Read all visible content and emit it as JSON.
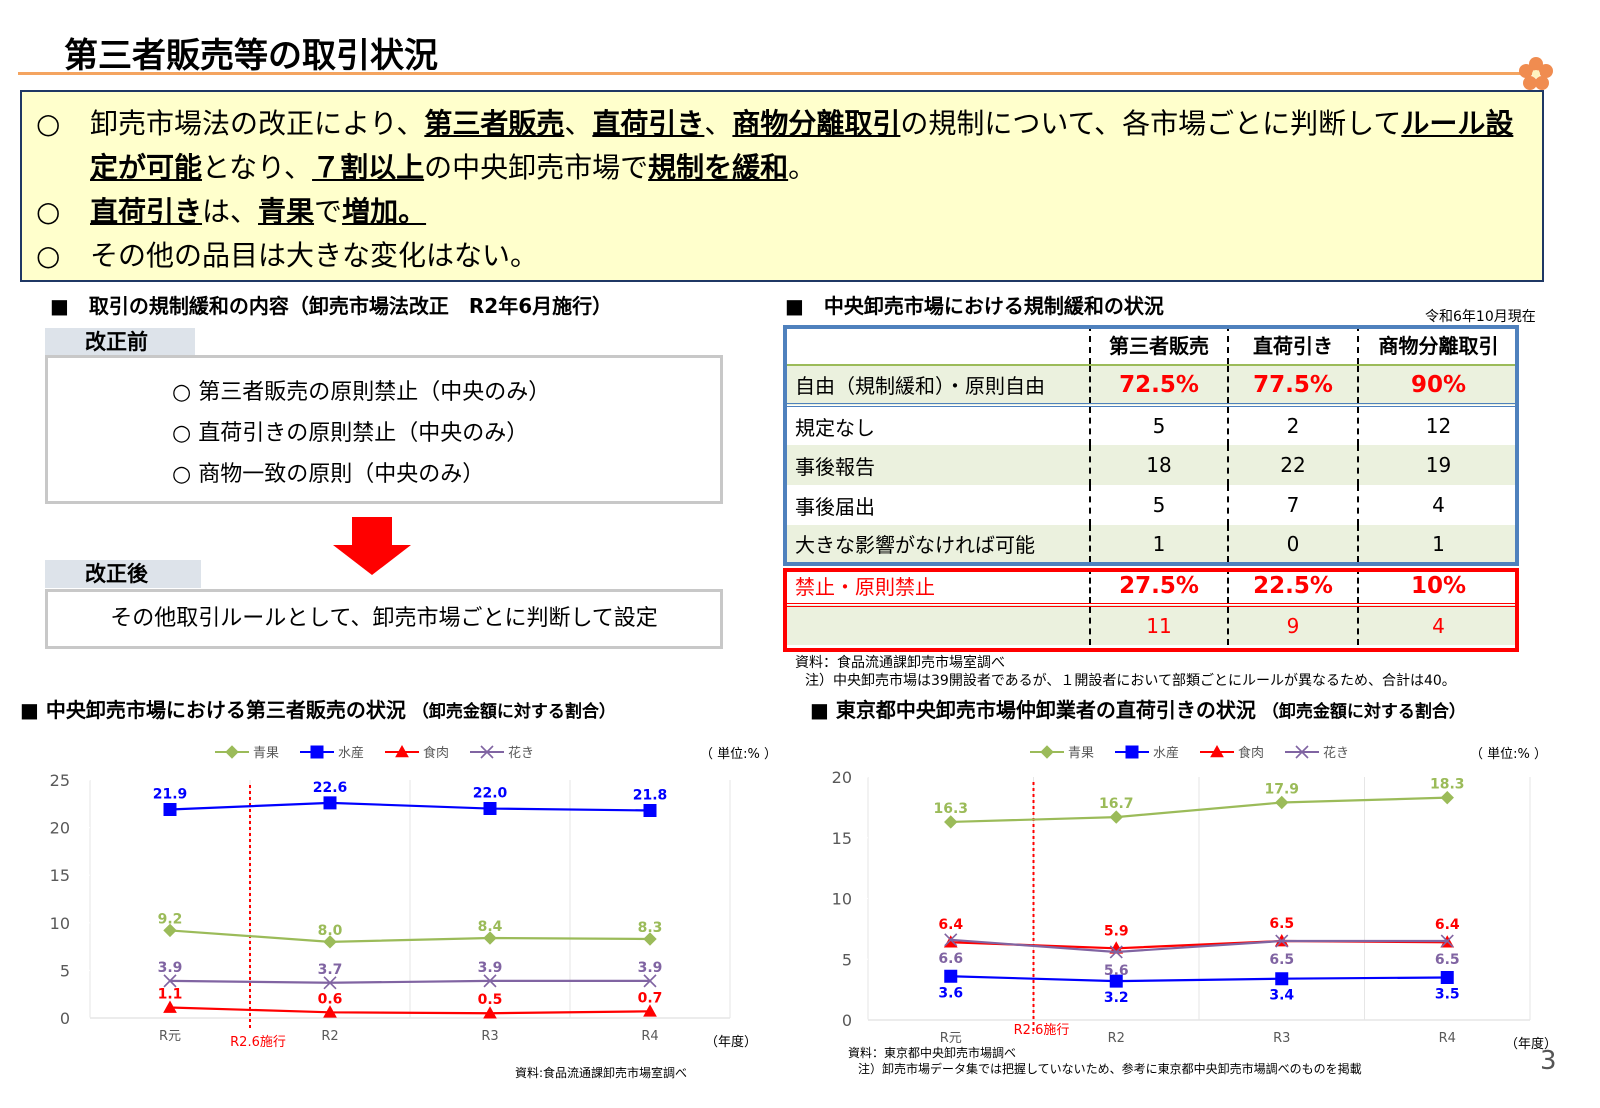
{
  "header": {
    "title": "第三者販売等の取引状況",
    "page_number": "3"
  },
  "summary": [
    {
      "marker": "○",
      "parts": [
        {
          "text": "卸売市場法の改正により、",
          "bold": false
        },
        {
          "text": "第三者販売",
          "bold": true
        },
        {
          "text": "、",
          "bold": false
        },
        {
          "text": "直荷引き",
          "bold": true
        },
        {
          "text": "、",
          "bold": false
        },
        {
          "text": "商物分離取引",
          "bold": true
        },
        {
          "text": "の規制について、各市場ごとに判断して",
          "bold": false
        },
        {
          "text": "ルール設定が可能",
          "bold": true
        },
        {
          "text": "となり、",
          "bold": false
        },
        {
          "text": "７割以上",
          "bold": true
        },
        {
          "text": "の中央卸売市場で",
          "bold": false
        },
        {
          "text": "規制を緩和",
          "bold": true
        },
        {
          "text": "。",
          "bold": false
        }
      ]
    },
    {
      "marker": "○",
      "parts": [
        {
          "text": "直荷引き",
          "bold": true
        },
        {
          "text": "は、",
          "bold": false
        },
        {
          "text": "青果",
          "bold": true
        },
        {
          "text": "で",
          "bold": false
        },
        {
          "text": "増加。",
          "bold": true
        }
      ]
    },
    {
      "marker": "○",
      "parts": [
        {
          "text": "その他の品目は大きな変化はない。",
          "bold": false
        }
      ]
    }
  ],
  "reform": {
    "heading": "■　取引の規制緩和の内容（卸売市場法改正　R2年6月施行）",
    "before_label": "改正前",
    "before_items": [
      "○ 第三者販売の原則禁止（中央のみ）",
      "○ 直荷引きの原則禁止（中央のみ）",
      "○ 商物一致の原則（中央のみ）"
    ],
    "after_label": "改正後",
    "after_text": "その他取引ルールとして、卸売市場ごとに判断して設定"
  },
  "table": {
    "heading": "■　中央卸売市場における規制緩和の状況",
    "date": "令和6年10月現在",
    "columns": [
      "第三者販売",
      "直荷引き",
      "商物分離取引"
    ],
    "free": {
      "label": "自由（規制緩和）・原則自由",
      "values": [
        "72.5%",
        "77.5%",
        "90%"
      ]
    },
    "free_rows": [
      {
        "label": "規定なし",
        "values": [
          5,
          2,
          12
        ]
      },
      {
        "label": "事後報告",
        "values": [
          18,
          22,
          19
        ]
      },
      {
        "label": "事後届出",
        "values": [
          5,
          7,
          4
        ]
      },
      {
        "label": "大きな影響がなければ可能",
        "values": [
          1,
          0,
          1
        ]
      }
    ],
    "banned": {
      "label": "禁止・原則禁止",
      "values": [
        "27.5%",
        "22.5%",
        "10%"
      ]
    },
    "banned_counts": [
      11,
      9,
      4
    ],
    "source": "資料：食品流通課卸売市場室調べ",
    "note": "注）中央卸売市場は39開設者であるが、１開設者において部類ごとにルールが異なるため、合計は40。"
  },
  "chart_data": [
    {
      "type": "line",
      "title": "■ 中央卸売市場における第三者販売の状況",
      "subtitle": "（卸売金額に対する割合）",
      "unit_label": "（ 単位:% ）",
      "x_label": "（年度）",
      "annotation": "R2.6施行",
      "categories": [
        "R元",
        "R2",
        "R3",
        "R4"
      ],
      "series": [
        {
          "name": "青果",
          "color": "#9bbb59",
          "marker": "diamond",
          "values": [
            9.2,
            8.0,
            8.4,
            8.3
          ],
          "value_labels": [
            "9.2",
            "8.0",
            "8.4",
            "8.3"
          ]
        },
        {
          "name": "水産",
          "color": "#0000ff",
          "marker": "square",
          "values": [
            21.9,
            22.6,
            22.0,
            21.8
          ],
          "value_labels": [
            "21.9",
            "22.6",
            "22.0",
            "21.8"
          ]
        },
        {
          "name": "食肉",
          "color": "#ff0000",
          "marker": "triangle",
          "values": [
            1.1,
            0.6,
            0.5,
            0.7
          ]
        },
        {
          "name": "花き",
          "color": "#8064a2",
          "marker": "x",
          "values": [
            3.9,
            3.7,
            3.9,
            3.9
          ]
        }
      ],
      "ylim": [
        0,
        25
      ],
      "yticks": [
        0,
        5,
        10,
        15,
        20,
        25
      ],
      "source": "資料:食品流通課卸売市場室調べ"
    },
    {
      "type": "line",
      "title": "■ 東京都中央卸売市場仲卸業者の直荷引きの状況",
      "subtitle": "（卸売金額に対する割合）",
      "unit_label": "（ 単位:% ）",
      "x_label": "（年度）",
      "annotation": "R2.6施行",
      "categories": [
        "R元",
        "R2",
        "R3",
        "R4"
      ],
      "series": [
        {
          "name": "青果",
          "color": "#9bbb59",
          "marker": "diamond",
          "values": [
            16.3,
            16.7,
            17.9,
            18.3
          ]
        },
        {
          "name": "水産",
          "color": "#0000ff",
          "marker": "square",
          "values": [
            3.6,
            3.2,
            3.4,
            3.5
          ]
        },
        {
          "name": "食肉",
          "color": "#ff0000",
          "marker": "triangle",
          "values": [
            6.4,
            5.9,
            6.5,
            6.4
          ]
        },
        {
          "name": "花き",
          "color": "#8064a2",
          "marker": "x",
          "values": [
            6.6,
            5.6,
            6.5,
            6.5
          ]
        }
      ],
      "ylim": [
        0,
        20
      ],
      "yticks": [
        0,
        5,
        10,
        15,
        20
      ],
      "source": "資料：東京都中央卸売市場調べ",
      "note": "注）卸売市場データ集では把握していないため、参考に東京都中央卸売市場調べのものを掲載"
    }
  ]
}
